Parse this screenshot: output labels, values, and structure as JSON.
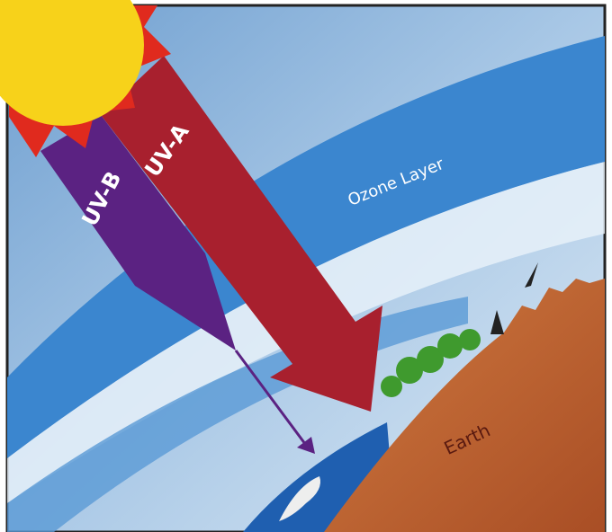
{
  "labels": {
    "uv_b": "UV-B",
    "uv_a": "UV-A",
    "ozone": "Ozone Layer",
    "earth": "Earth"
  }
}
